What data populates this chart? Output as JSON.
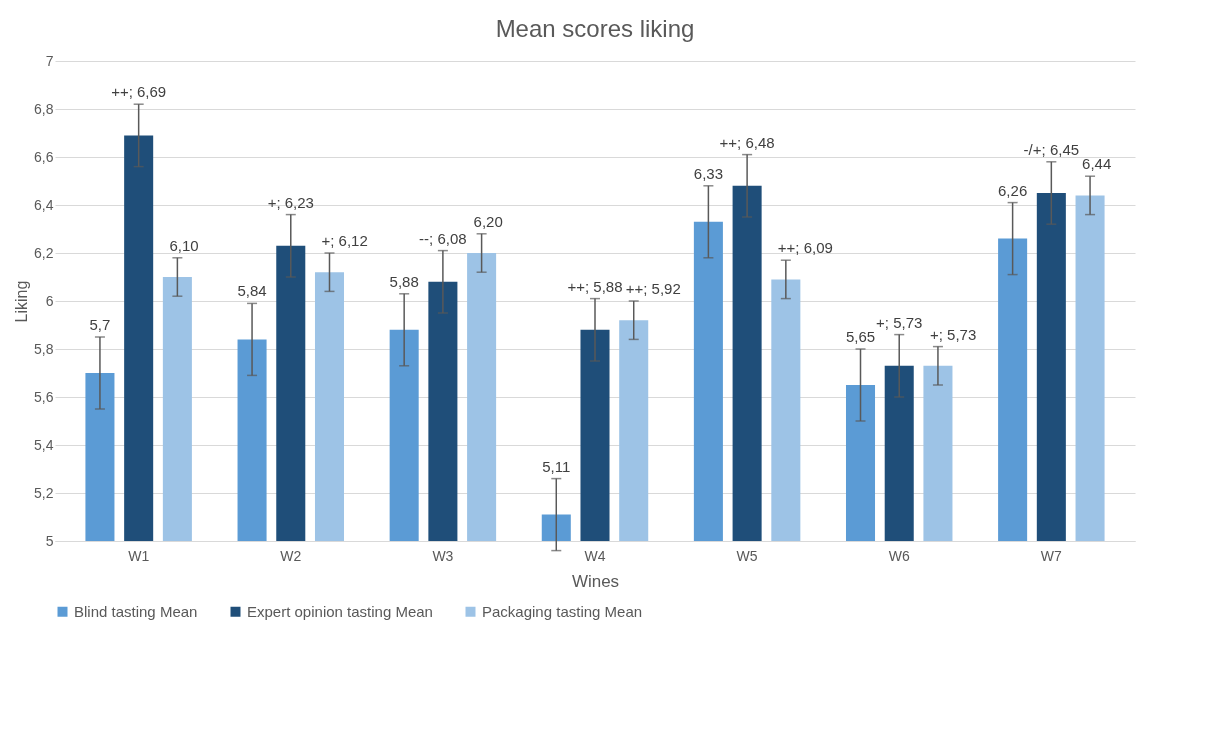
{
  "chart_data": {
    "type": "bar",
    "title": "Mean scores liking",
    "xlabel": "Wines",
    "ylabel": "Liking",
    "categories": [
      "W1",
      "W2",
      "W3",
      "W4",
      "W5",
      "W6",
      "W7"
    ],
    "series": [
      {
        "name": "Blind tasting Mean",
        "color": "#5b9bd5",
        "values": [
          5.7,
          5.84,
          5.88,
          5.11,
          6.33,
          5.65,
          6.26
        ],
        "errors": [
          0.15,
          0.15,
          0.15,
          0.15,
          0.15,
          0.15,
          0.15
        ],
        "value_labels": [
          "5,7",
          "5,84",
          "5,88",
          "5,11",
          "6,33",
          "5,65",
          "6,26"
        ]
      },
      {
        "name": "Expert opinion tasting Mean",
        "color": "#1f4e79",
        "values": [
          6.69,
          6.23,
          6.08,
          5.88,
          6.48,
          5.73,
          6.45
        ],
        "errors": [
          0.13,
          0.13,
          0.13,
          0.13,
          0.13,
          0.13,
          0.13
        ],
        "value_labels": [
          "++; 6,69",
          "+; 6,23",
          "--; 6,08",
          "++; 5,88",
          "++; 6,48",
          "+; 5,73",
          "-/+; 6,45"
        ]
      },
      {
        "name": "Packaging tasting Mean",
        "color": "#9dc3e6",
        "values": [
          6.1,
          6.12,
          6.2,
          5.92,
          6.09,
          5.73,
          6.44
        ],
        "errors": [
          0.08,
          0.08,
          0.08,
          0.08,
          0.08,
          0.08,
          0.08
        ],
        "value_labels": [
          "6,10",
          "+; 6,12",
          "6,20",
          "++; 5,92",
          "++; 6,09",
          "+; 5,73",
          "6,44"
        ]
      }
    ],
    "ylim": [
      5,
      7
    ],
    "yticks": [
      5,
      {
        "value": 5.2,
        "label": "5,2"
      },
      {
        "value": 5.4,
        "label": "5,4"
      },
      {
        "value": 5.6,
        "label": "5,6"
      },
      {
        "value": 5.8,
        "label": "5,8"
      },
      6,
      {
        "value": 6.2,
        "label": "6,2"
      },
      {
        "value": 6.4,
        "label": "6,4"
      },
      {
        "value": 6.6,
        "label": "6,6"
      },
      {
        "value": 6.8,
        "label": "6,8"
      },
      7
    ],
    "grid": "y",
    "legend": "bottom"
  }
}
